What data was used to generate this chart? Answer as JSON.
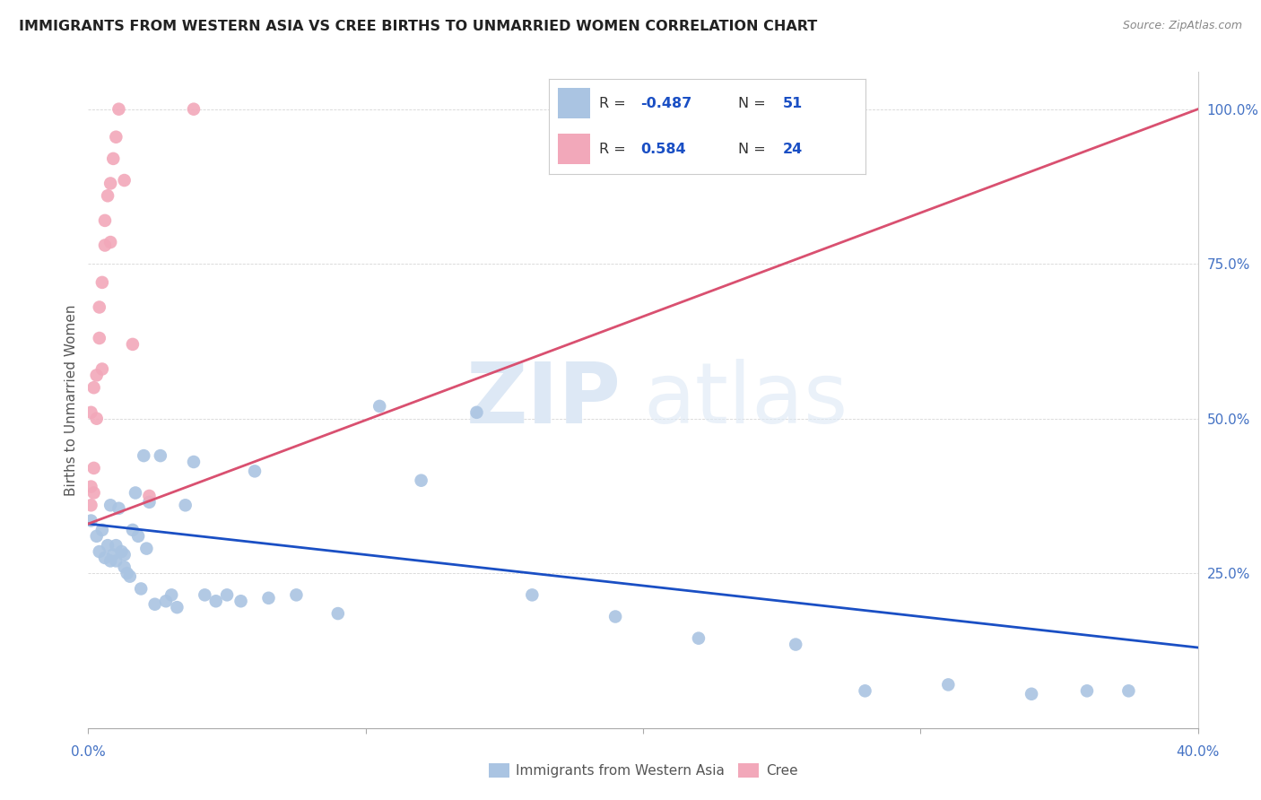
{
  "title": "IMMIGRANTS FROM WESTERN ASIA VS CREE BIRTHS TO UNMARRIED WOMEN CORRELATION CHART",
  "source": "Source: ZipAtlas.com",
  "ylabel": "Births to Unmarried Women",
  "ytick_labels": [
    "",
    "25.0%",
    "50.0%",
    "75.0%",
    "100.0%"
  ],
  "ytick_values": [
    0.0,
    0.25,
    0.5,
    0.75,
    1.0
  ],
  "xlim": [
    0.0,
    0.4
  ],
  "ylim": [
    0.0,
    1.06
  ],
  "legend_blue_R": "-0.487",
  "legend_blue_N": "51",
  "legend_pink_R": "0.584",
  "legend_pink_N": "24",
  "blue_color": "#aac4e2",
  "pink_color": "#f2a8ba",
  "blue_line_color": "#1a4fc4",
  "pink_line_color": "#d95070",
  "blue_scatter_x": [
    0.001,
    0.003,
    0.004,
    0.005,
    0.006,
    0.007,
    0.008,
    0.008,
    0.009,
    0.01,
    0.01,
    0.011,
    0.012,
    0.013,
    0.013,
    0.014,
    0.015,
    0.016,
    0.017,
    0.018,
    0.019,
    0.02,
    0.021,
    0.022,
    0.024,
    0.026,
    0.028,
    0.03,
    0.032,
    0.035,
    0.038,
    0.042,
    0.046,
    0.05,
    0.055,
    0.06,
    0.065,
    0.075,
    0.09,
    0.105,
    0.12,
    0.14,
    0.16,
    0.19,
    0.22,
    0.255,
    0.28,
    0.31,
    0.34,
    0.36,
    0.375
  ],
  "blue_scatter_y": [
    0.335,
    0.31,
    0.285,
    0.32,
    0.275,
    0.295,
    0.27,
    0.36,
    0.28,
    0.295,
    0.27,
    0.355,
    0.285,
    0.28,
    0.26,
    0.25,
    0.245,
    0.32,
    0.38,
    0.31,
    0.225,
    0.44,
    0.29,
    0.365,
    0.2,
    0.44,
    0.205,
    0.215,
    0.195,
    0.36,
    0.43,
    0.215,
    0.205,
    0.215,
    0.205,
    0.415,
    0.21,
    0.215,
    0.185,
    0.52,
    0.4,
    0.51,
    0.215,
    0.18,
    0.145,
    0.135,
    0.06,
    0.07,
    0.055,
    0.06,
    0.06
  ],
  "pink_scatter_x": [
    0.001,
    0.001,
    0.001,
    0.002,
    0.002,
    0.002,
    0.003,
    0.003,
    0.004,
    0.004,
    0.005,
    0.005,
    0.006,
    0.006,
    0.007,
    0.008,
    0.008,
    0.009,
    0.01,
    0.011,
    0.013,
    0.016,
    0.022,
    0.038
  ],
  "pink_scatter_y": [
    0.39,
    0.36,
    0.51,
    0.38,
    0.42,
    0.55,
    0.5,
    0.57,
    0.63,
    0.68,
    0.58,
    0.72,
    0.78,
    0.82,
    0.86,
    0.88,
    0.785,
    0.92,
    0.955,
    1.0,
    0.885,
    0.62,
    0.375,
    1.0
  ],
  "blue_trend_x": [
    0.0,
    0.4
  ],
  "blue_trend_y": [
    0.33,
    0.13
  ],
  "pink_trend_x": [
    0.0,
    0.4
  ],
  "pink_trend_y": [
    0.33,
    1.0
  ]
}
